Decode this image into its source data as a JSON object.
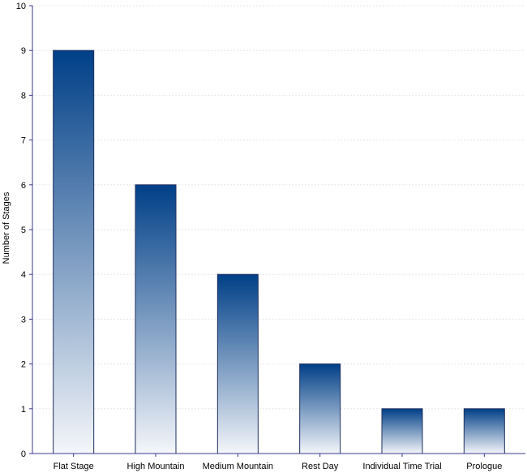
{
  "chart_data": {
    "type": "bar",
    "title": "",
    "xlabel": "",
    "ylabel": "Number of Stages",
    "categories": [
      "Flat Stage",
      "High Mountain",
      "Medium Mountain",
      "Rest Day",
      "Individual Time Trial",
      "Prologue"
    ],
    "values": [
      9,
      6,
      4,
      2,
      1,
      1
    ],
    "ylim": [
      0,
      10
    ],
    "yticks": [
      "0",
      "1",
      "2",
      "3",
      "4",
      "5",
      "6",
      "7",
      "8",
      "9",
      "10"
    ],
    "grid": true,
    "legend": "none",
    "colors": {
      "bar_top": "#003f87",
      "bar_bottom": "#f4f6fa",
      "bar_border": "#1f2f5f",
      "axis": "#3a3a8c",
      "grid": "#e6e6e6"
    }
  }
}
